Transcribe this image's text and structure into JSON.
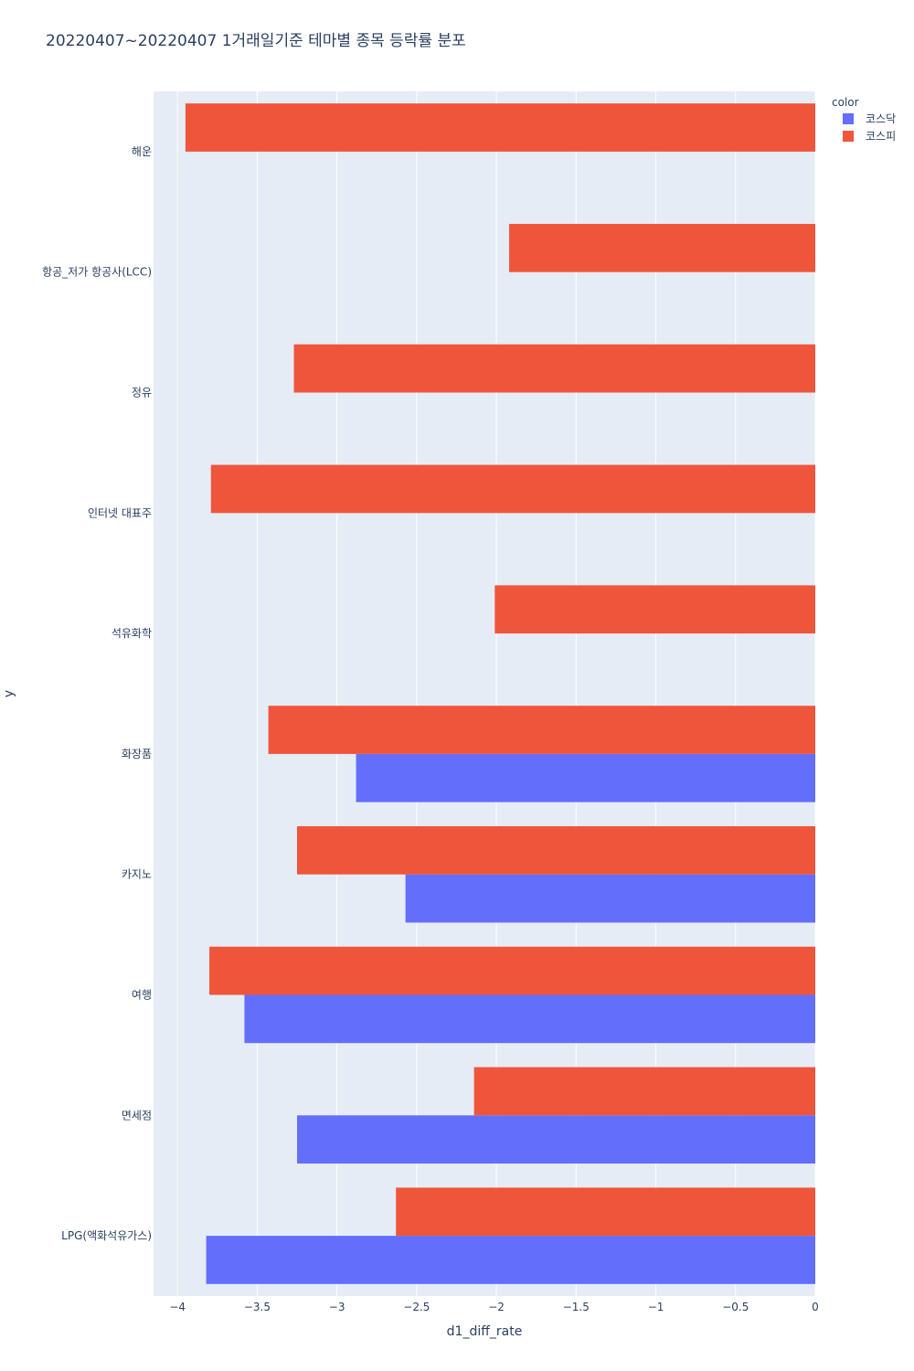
{
  "chart_data": {
    "type": "bar",
    "orientation": "horizontal",
    "title": "20220407~20220407 1거래일기준 테마별 종목 등락률 분포",
    "xlabel": "d1_diff_rate",
    "ylabel": "y",
    "xlim": [
      -4.15,
      0
    ],
    "xticks": [
      -4,
      -3.5,
      -3,
      -2.5,
      -2,
      -1.5,
      -1,
      -0.5,
      0
    ],
    "xtick_labels": [
      "−4",
      "−3.5",
      "−3",
      "−2.5",
      "−2",
      "−1.5",
      "−1",
      "−0.5",
      "0"
    ],
    "categories": [
      "해운",
      "항공_저가 항공사(LCC)",
      "정유",
      "인터넷 대표주",
      "석유화학",
      "화장품",
      "카지노",
      "여행",
      "면세점",
      "LPG(액화석유가스)"
    ],
    "legend": {
      "title": "color",
      "position": "top-right"
    },
    "series": [
      {
        "name": "코스닥",
        "color": "#636efa",
        "values": [
          null,
          null,
          null,
          null,
          null,
          -2.88,
          -2.57,
          -3.58,
          -3.25,
          -3.82
        ]
      },
      {
        "name": "코스피",
        "color": "#ef553b",
        "values": [
          -3.95,
          -1.92,
          -3.27,
          -3.79,
          -2.01,
          -3.43,
          -3.25,
          -3.8,
          -2.14,
          -2.63
        ]
      }
    ],
    "grid": true,
    "background": "#e5ecf6"
  }
}
